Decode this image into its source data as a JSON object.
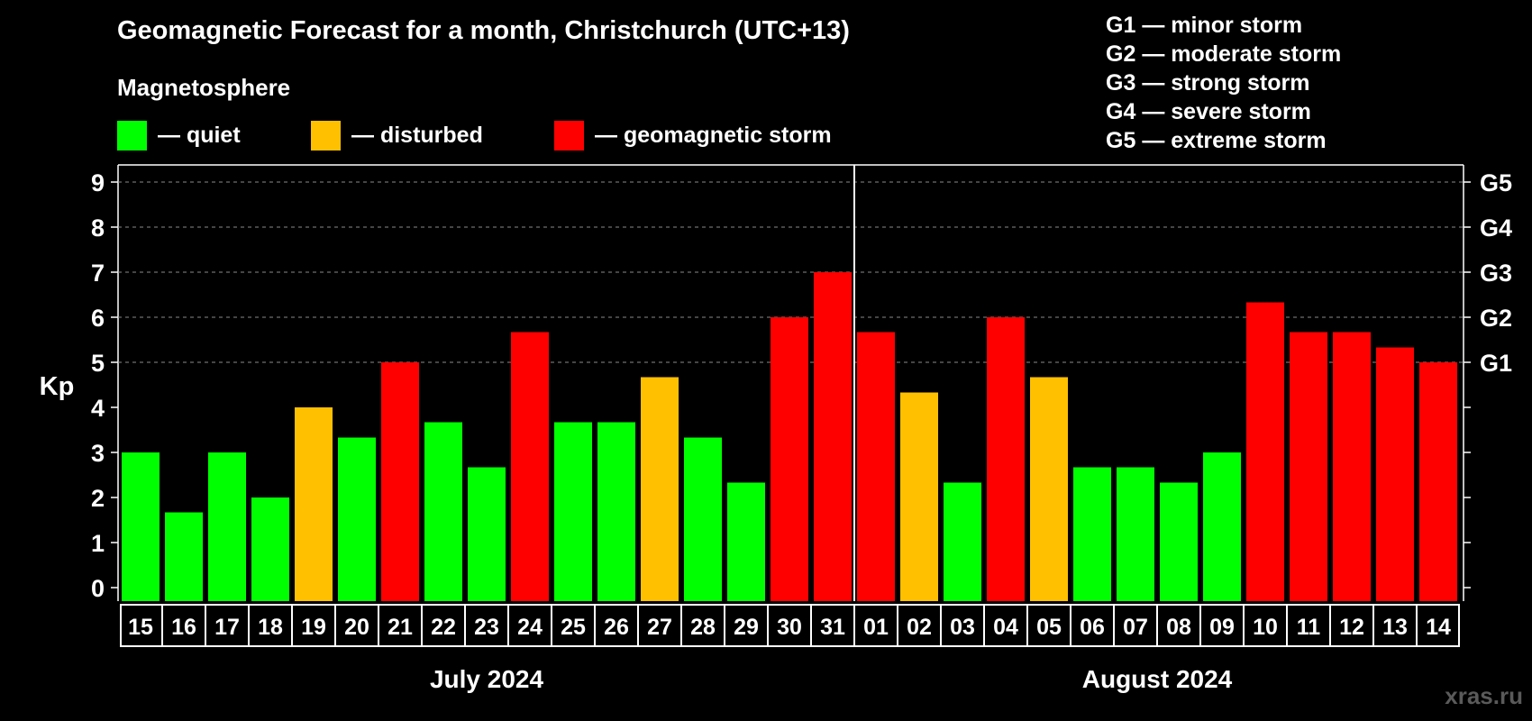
{
  "header": {
    "title": "Geomagnetic Forecast for a month, Christchurch (UTC+13)",
    "section_label": "Magnetosphere"
  },
  "legend": {
    "items": [
      {
        "label": "— quiet",
        "color": "#00ff00"
      },
      {
        "label": "— disturbed",
        "color": "#ffc000"
      },
      {
        "label": "— geomagnetic storm",
        "color": "#ff0000"
      }
    ]
  },
  "storm_scale": [
    {
      "code": "G1",
      "text": "— minor storm"
    },
    {
      "code": "G2",
      "text": "— moderate storm"
    },
    {
      "code": "G3",
      "text": "— strong storm"
    },
    {
      "code": "G4",
      "text": "— severe storm"
    },
    {
      "code": "G5",
      "text": "— extreme storm"
    }
  ],
  "watermark": "xras.ru",
  "chart_data": {
    "type": "bar",
    "ylabel": "Kp",
    "ylim": [
      0,
      9
    ],
    "yticks": [
      "0",
      "1",
      "2",
      "3",
      "4",
      "5",
      "6",
      "7",
      "8",
      "9"
    ],
    "right_axis_labels": [
      {
        "kp": 5,
        "label": "G1"
      },
      {
        "kp": 6,
        "label": "G2"
      },
      {
        "kp": 7,
        "label": "G3"
      },
      {
        "kp": 8,
        "label": "G4"
      },
      {
        "kp": 9,
        "label": "G5"
      }
    ],
    "grid": "horizontal dashed at Kp 5-9",
    "months": [
      {
        "label": "July 2024",
        "first_index": 0,
        "last_index": 16
      },
      {
        "label": "August 2024",
        "first_index": 17,
        "last_index": 30
      }
    ],
    "categories": [
      "15",
      "16",
      "17",
      "18",
      "19",
      "20",
      "21",
      "22",
      "23",
      "24",
      "25",
      "26",
      "27",
      "28",
      "29",
      "30",
      "31",
      "01",
      "02",
      "03",
      "04",
      "05",
      "06",
      "07",
      "08",
      "09",
      "10",
      "11",
      "12",
      "13",
      "14"
    ],
    "values": [
      3.0,
      1.67,
      3.0,
      2.0,
      4.0,
      3.33,
      5.0,
      3.67,
      2.67,
      5.67,
      3.67,
      3.67,
      4.67,
      3.33,
      2.33,
      6.0,
      7.0,
      5.67,
      4.33,
      2.33,
      6.0,
      4.67,
      2.67,
      2.67,
      2.33,
      3.0,
      6.33,
      5.67,
      5.67,
      5.33,
      5.0
    ],
    "colors": {
      "quiet": "#00ff00",
      "disturbed": "#ffc000",
      "storm": "#ff0000"
    }
  }
}
